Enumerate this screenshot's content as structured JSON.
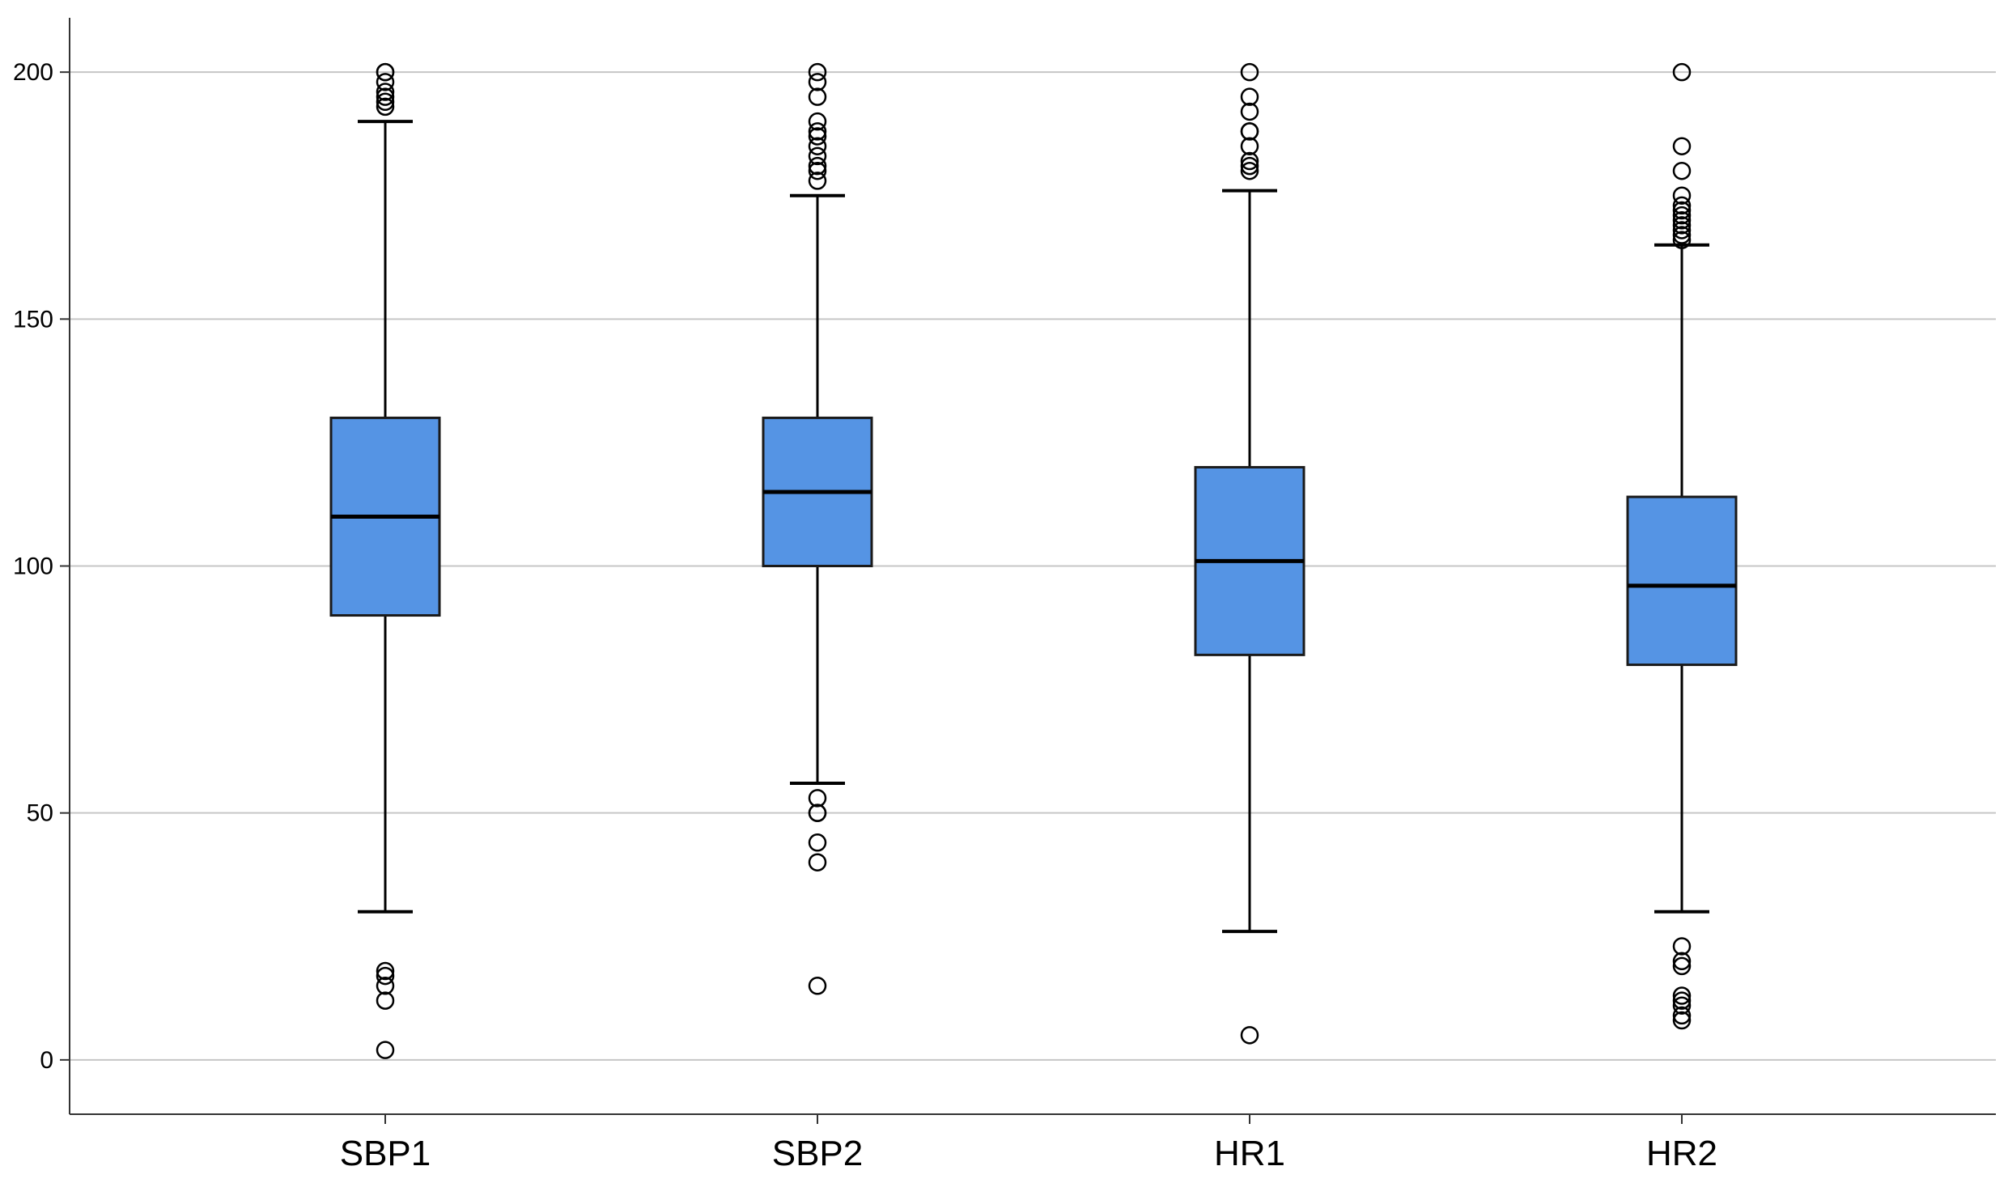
{
  "chart_data": {
    "type": "boxplot",
    "title": "",
    "xlabel": "",
    "ylabel": "",
    "ylim": [
      -11,
      211
    ],
    "yticks": [
      0,
      50,
      100,
      150,
      200
    ],
    "grid": true,
    "colors": {
      "box_fill": "#5594E4",
      "box_stroke": "#1a1a1a",
      "median": "#000000",
      "grid": "#c6c6c6",
      "axis": "#333333",
      "outlier": "#000000"
    },
    "categories": [
      "SBP1",
      "SBP2",
      "HR1",
      "HR2"
    ],
    "boxes": [
      {
        "label": "SBP1",
        "whisker_low": 30,
        "q1": 90,
        "median": 110,
        "q3": 130,
        "whisker_high": 190,
        "outliers": [
          2,
          12,
          15,
          17,
          18,
          193,
          194,
          195,
          196,
          198,
          200,
          200
        ]
      },
      {
        "label": "SBP2",
        "whisker_low": 56,
        "q1": 100,
        "median": 115,
        "q3": 130,
        "whisker_high": 175,
        "outliers": [
          15,
          40,
          44,
          50,
          50,
          53,
          178,
          180,
          181,
          183,
          185,
          187,
          188,
          190,
          195,
          198,
          200
        ]
      },
      {
        "label": "HR1",
        "whisker_low": 26,
        "q1": 82,
        "median": 101,
        "q3": 120,
        "whisker_high": 176,
        "outliers": [
          5,
          180,
          181,
          182,
          185,
          188,
          188,
          192,
          195,
          200
        ]
      },
      {
        "label": "HR2",
        "whisker_low": 30,
        "q1": 80,
        "median": 96,
        "q3": 114,
        "whisker_high": 165,
        "outliers": [
          8,
          9,
          11,
          12,
          13,
          19,
          20,
          23,
          166,
          167,
          168,
          169,
          170,
          171,
          172,
          173,
          175,
          180,
          185,
          200
        ]
      }
    ]
  }
}
